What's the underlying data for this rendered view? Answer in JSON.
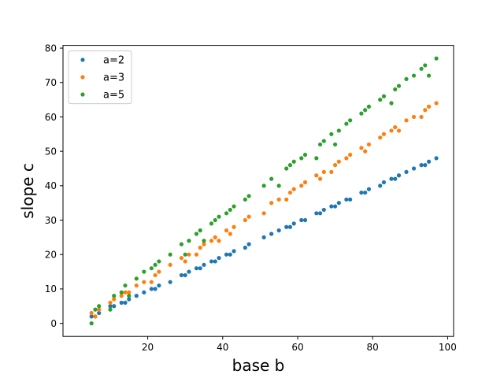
{
  "chart_data": {
    "type": "scatter",
    "title": "",
    "xlabel": "base b",
    "ylabel": "slope c",
    "xlim": [
      -2.6,
      101.6
    ],
    "ylim": [
      -3.8,
      80.8
    ],
    "xticks": [
      20,
      40,
      60,
      80,
      100
    ],
    "yticks": [
      0,
      10,
      20,
      30,
      40,
      50,
      60,
      70,
      80
    ],
    "grid": false,
    "legend_position": "top-left",
    "series": [
      {
        "name": "a=2",
        "color": "#1f77b4",
        "points": [
          [
            5,
            2
          ],
          [
            6,
            2
          ],
          [
            7,
            3
          ],
          [
            10,
            5
          ],
          [
            11,
            5
          ],
          [
            13,
            6
          ],
          [
            14,
            6
          ],
          [
            15,
            7
          ],
          [
            17,
            8
          ],
          [
            19,
            9
          ],
          [
            21,
            10
          ],
          [
            22,
            10
          ],
          [
            23,
            11
          ],
          [
            26,
            12
          ],
          [
            29,
            14
          ],
          [
            30,
            14
          ],
          [
            31,
            15
          ],
          [
            33,
            16
          ],
          [
            34,
            16
          ],
          [
            35,
            17
          ],
          [
            37,
            18
          ],
          [
            38,
            18
          ],
          [
            39,
            19
          ],
          [
            41,
            20
          ],
          [
            42,
            20
          ],
          [
            43,
            21
          ],
          [
            46,
            22
          ],
          [
            47,
            23
          ],
          [
            51,
            25
          ],
          [
            53,
            26
          ],
          [
            55,
            27
          ],
          [
            57,
            28
          ],
          [
            58,
            28
          ],
          [
            59,
            29
          ],
          [
            61,
            30
          ],
          [
            62,
            30
          ],
          [
            65,
            32
          ],
          [
            66,
            32
          ],
          [
            67,
            33
          ],
          [
            69,
            34
          ],
          [
            70,
            34
          ],
          [
            71,
            35
          ],
          [
            73,
            36
          ],
          [
            74,
            36
          ],
          [
            77,
            38
          ],
          [
            78,
            38
          ],
          [
            79,
            39
          ],
          [
            82,
            40
          ],
          [
            83,
            41
          ],
          [
            85,
            42
          ],
          [
            86,
            42
          ],
          [
            87,
            43
          ],
          [
            89,
            44
          ],
          [
            91,
            45
          ],
          [
            93,
            46
          ],
          [
            94,
            46
          ],
          [
            95,
            47
          ],
          [
            97,
            48
          ]
        ]
      },
      {
        "name": "a=3",
        "color": "#ff7f0e",
        "points": [
          [
            5,
            3
          ],
          [
            6,
            2
          ],
          [
            7,
            4
          ],
          [
            10,
            6
          ],
          [
            11,
            7
          ],
          [
            13,
            8
          ],
          [
            14,
            9
          ],
          [
            15,
            9
          ],
          [
            17,
            11
          ],
          [
            19,
            12
          ],
          [
            21,
            12
          ],
          [
            22,
            14
          ],
          [
            23,
            15
          ],
          [
            26,
            17
          ],
          [
            29,
            19
          ],
          [
            30,
            18
          ],
          [
            31,
            20
          ],
          [
            33,
            20
          ],
          [
            34,
            22
          ],
          [
            35,
            23
          ],
          [
            37,
            24
          ],
          [
            38,
            25
          ],
          [
            39,
            24
          ],
          [
            41,
            27
          ],
          [
            42,
            26
          ],
          [
            43,
            28
          ],
          [
            46,
            30
          ],
          [
            47,
            31
          ],
          [
            51,
            32
          ],
          [
            53,
            35
          ],
          [
            55,
            36
          ],
          [
            57,
            36
          ],
          [
            58,
            38
          ],
          [
            59,
            39
          ],
          [
            61,
            40
          ],
          [
            62,
            41
          ],
          [
            65,
            43
          ],
          [
            66,
            42
          ],
          [
            67,
            44
          ],
          [
            69,
            44
          ],
          [
            70,
            46
          ],
          [
            71,
            47
          ],
          [
            73,
            48
          ],
          [
            74,
            49
          ],
          [
            77,
            51
          ],
          [
            78,
            50
          ],
          [
            79,
            52
          ],
          [
            82,
            54
          ],
          [
            83,
            55
          ],
          [
            85,
            56
          ],
          [
            86,
            57
          ],
          [
            87,
            56
          ],
          [
            89,
            59
          ],
          [
            91,
            60
          ],
          [
            93,
            60
          ],
          [
            94,
            62
          ],
          [
            95,
            63
          ],
          [
            97,
            64
          ]
        ]
      },
      {
        "name": "a=5",
        "color": "#2ca02c",
        "points": [
          [
            5,
            0
          ],
          [
            6,
            4
          ],
          [
            7,
            5
          ],
          [
            10,
            4
          ],
          [
            11,
            8
          ],
          [
            13,
            9
          ],
          [
            14,
            11
          ],
          [
            15,
            8
          ],
          [
            17,
            13
          ],
          [
            19,
            15
          ],
          [
            21,
            16
          ],
          [
            22,
            17
          ],
          [
            23,
            18
          ],
          [
            26,
            20
          ],
          [
            29,
            23
          ],
          [
            30,
            20
          ],
          [
            31,
            24
          ],
          [
            33,
            26
          ],
          [
            34,
            27
          ],
          [
            35,
            24
          ],
          [
            37,
            29
          ],
          [
            38,
            30
          ],
          [
            39,
            31
          ],
          [
            41,
            32
          ],
          [
            42,
            33
          ],
          [
            43,
            34
          ],
          [
            46,
            36
          ],
          [
            47,
            37
          ],
          [
            51,
            40
          ],
          [
            53,
            42
          ],
          [
            55,
            40
          ],
          [
            57,
            45
          ],
          [
            58,
            46
          ],
          [
            59,
            47
          ],
          [
            61,
            48
          ],
          [
            62,
            49
          ],
          [
            65,
            48
          ],
          [
            66,
            52
          ],
          [
            67,
            53
          ],
          [
            69,
            55
          ],
          [
            70,
            52
          ],
          [
            71,
            56
          ],
          [
            73,
            58
          ],
          [
            74,
            59
          ],
          [
            77,
            61
          ],
          [
            78,
            62
          ],
          [
            79,
            63
          ],
          [
            82,
            65
          ],
          [
            83,
            66
          ],
          [
            85,
            64
          ],
          [
            86,
            68
          ],
          [
            87,
            69
          ],
          [
            89,
            71
          ],
          [
            91,
            72
          ],
          [
            93,
            74
          ],
          [
            94,
            75
          ],
          [
            95,
            72
          ],
          [
            97,
            77
          ]
        ]
      }
    ]
  }
}
